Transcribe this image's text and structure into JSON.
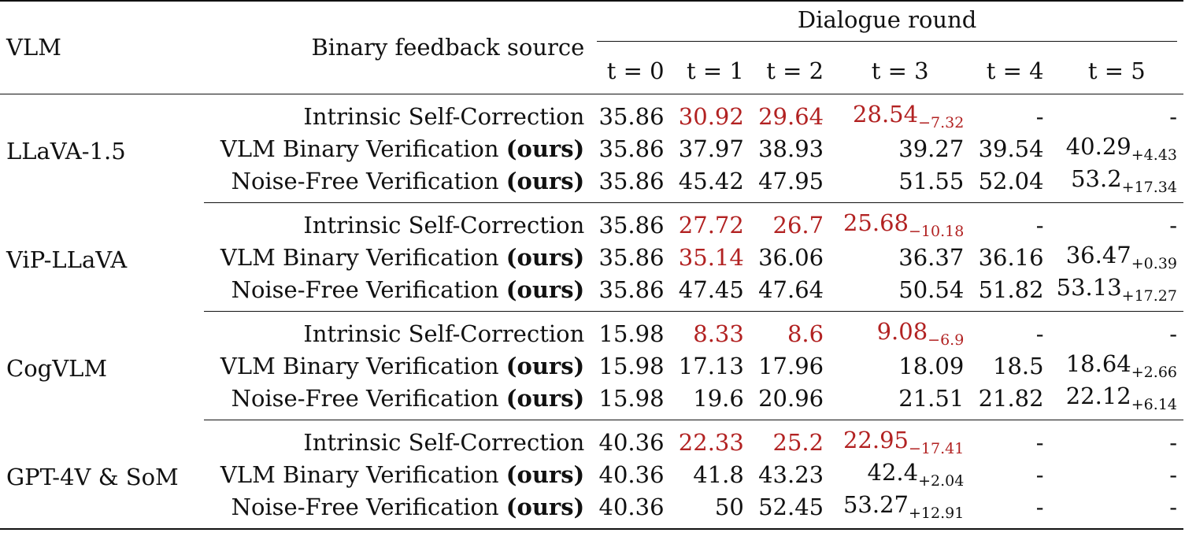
{
  "header": {
    "vlm": "VLM",
    "source": "Binary feedback source",
    "round_title": "Dialogue round",
    "rounds": [
      "t = 0",
      "t = 1",
      "t = 2",
      "t = 3",
      "t = 4",
      "t = 5"
    ]
  },
  "ours_tag": "(ours)",
  "groups": [
    {
      "vlm": "LLaVA-1.5",
      "rows": [
        {
          "source": "Intrinsic Self-Correction",
          "ours": false,
          "cells": [
            {
              "v": "35.86"
            },
            {
              "v": "30.92",
              "neg": true
            },
            {
              "v": "29.64",
              "neg": true
            },
            {
              "v": "28.54",
              "d": "−7.32",
              "neg": true
            },
            {
              "v": "-"
            },
            {
              "v": "-"
            }
          ]
        },
        {
          "source": "VLM Binary Verification",
          "ours": true,
          "cells": [
            {
              "v": "35.86"
            },
            {
              "v": "37.97"
            },
            {
              "v": "38.93"
            },
            {
              "v": "39.27"
            },
            {
              "v": "39.54"
            },
            {
              "v": "40.29",
              "d": "+4.43"
            }
          ]
        },
        {
          "source": "Noise-Free Verification",
          "ours": true,
          "cells": [
            {
              "v": "35.86"
            },
            {
              "v": "45.42"
            },
            {
              "v": "47.95"
            },
            {
              "v": "51.55"
            },
            {
              "v": "52.04"
            },
            {
              "v": "53.2",
              "d": "+17.34"
            }
          ]
        }
      ]
    },
    {
      "vlm": "ViP-LLaVA",
      "rows": [
        {
          "source": "Intrinsic Self-Correction",
          "ours": false,
          "cells": [
            {
              "v": "35.86"
            },
            {
              "v": "27.72",
              "neg": true
            },
            {
              "v": "26.7",
              "neg": true
            },
            {
              "v": "25.68",
              "d": "−10.18",
              "neg": true
            },
            {
              "v": "-"
            },
            {
              "v": "-"
            }
          ]
        },
        {
          "source": "VLM Binary Verification",
          "ours": true,
          "cells": [
            {
              "v": "35.86"
            },
            {
              "v": "35.14",
              "neg": true
            },
            {
              "v": "36.06"
            },
            {
              "v": "36.37"
            },
            {
              "v": "36.16"
            },
            {
              "v": "36.47",
              "d": "+0.39"
            }
          ]
        },
        {
          "source": "Noise-Free Verification",
          "ours": true,
          "cells": [
            {
              "v": "35.86"
            },
            {
              "v": "47.45"
            },
            {
              "v": "47.64"
            },
            {
              "v": "50.54"
            },
            {
              "v": "51.82"
            },
            {
              "v": "53.13",
              "d": "+17.27"
            }
          ]
        }
      ]
    },
    {
      "vlm": "CogVLM",
      "rows": [
        {
          "source": "Intrinsic Self-Correction",
          "ours": false,
          "cells": [
            {
              "v": "15.98"
            },
            {
              "v": "8.33",
              "neg": true
            },
            {
              "v": "8.6",
              "neg": true
            },
            {
              "v": "9.08",
              "d": "−6.9",
              "neg": true
            },
            {
              "v": "-"
            },
            {
              "v": "-"
            }
          ]
        },
        {
          "source": "VLM Binary Verification",
          "ours": true,
          "cells": [
            {
              "v": "15.98"
            },
            {
              "v": "17.13"
            },
            {
              "v": "17.96"
            },
            {
              "v": "18.09"
            },
            {
              "v": "18.5"
            },
            {
              "v": "18.64",
              "d": "+2.66"
            }
          ]
        },
        {
          "source": "Noise-Free Verification",
          "ours": true,
          "cells": [
            {
              "v": "15.98"
            },
            {
              "v": "19.6"
            },
            {
              "v": "20.96"
            },
            {
              "v": "21.51"
            },
            {
              "v": "21.82"
            },
            {
              "v": "22.12",
              "d": "+6.14"
            }
          ]
        }
      ]
    },
    {
      "vlm": "GPT-4V & SoM",
      "rows": [
        {
          "source": "Intrinsic Self-Correction",
          "ours": false,
          "cells": [
            {
              "v": "40.36"
            },
            {
              "v": "22.33",
              "neg": true
            },
            {
              "v": "25.2",
              "neg": true
            },
            {
              "v": "22.95",
              "d": "−17.41",
              "neg": true
            },
            {
              "v": "-"
            },
            {
              "v": "-"
            }
          ]
        },
        {
          "source": "VLM Binary Verification",
          "ours": true,
          "cells": [
            {
              "v": "40.36"
            },
            {
              "v": "41.8"
            },
            {
              "v": "43.23"
            },
            {
              "v": "42.4",
              "d": "+2.04"
            },
            {
              "v": "-"
            },
            {
              "v": "-"
            }
          ]
        },
        {
          "source": "Noise-Free Verification",
          "ours": true,
          "cells": [
            {
              "v": "40.36"
            },
            {
              "v": "50"
            },
            {
              "v": "52.45"
            },
            {
              "v": "53.27",
              "d": "+12.91"
            },
            {
              "v": "-"
            },
            {
              "v": "-"
            }
          ]
        }
      ]
    }
  ],
  "colors": {
    "negative": "#b22222",
    "text": "#111111"
  }
}
